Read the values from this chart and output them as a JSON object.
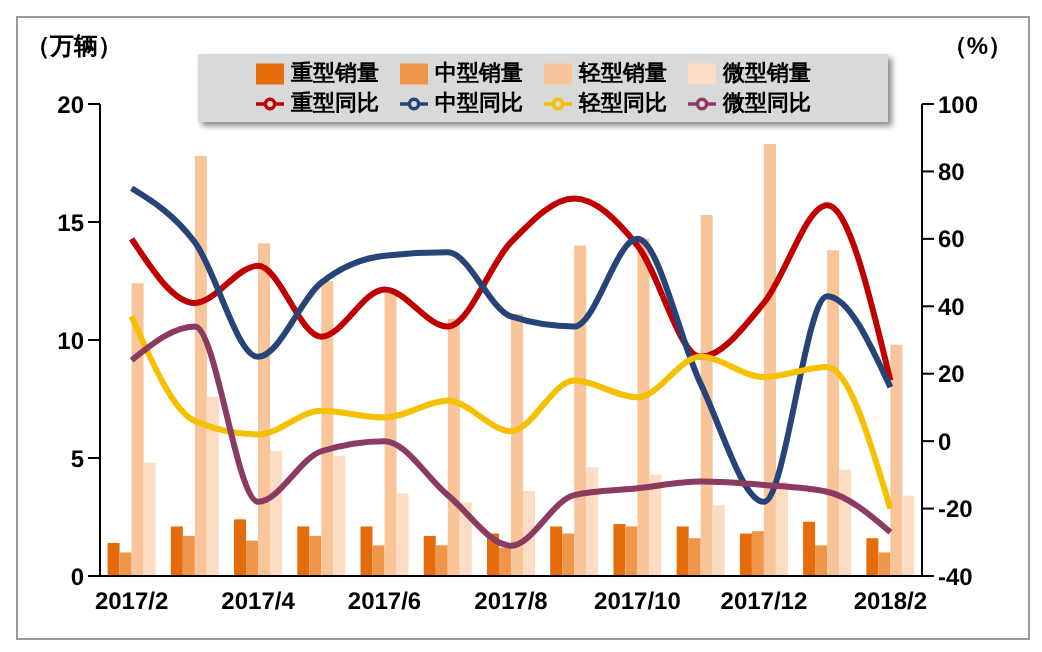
{
  "chart_data": {
    "type": "bar",
    "ylabel": "（万辆）",
    "y2label": "（%）",
    "categories": [
      "2017/2",
      null,
      "2017/4",
      null,
      "2017/6",
      null,
      "2017/8",
      null,
      "2017/10",
      null,
      "2017/12",
      null,
      "2018/2"
    ],
    "series": [
      {
        "name": "重型销量",
        "color": "#e46c0a",
        "values": [
          1.4,
          2.1,
          2.4,
          2.1,
          2.1,
          1.7,
          1.8,
          2.1,
          2.2,
          2.1,
          1.8,
          2.3,
          1.6
        ]
      },
      {
        "name": "中型销量",
        "color": "#f0964a",
        "values": [
          1.0,
          1.7,
          1.5,
          1.7,
          1.3,
          1.3,
          1.2,
          1.8,
          2.1,
          1.6,
          1.9,
          1.3,
          1.0
        ]
      },
      {
        "name": "轻型销量",
        "color": "#f8c49a",
        "values": [
          12.4,
          17.8,
          14.1,
          12.5,
          12.0,
          10.9,
          11.1,
          14.0,
          14.3,
          15.3,
          18.3,
          13.8,
          9.8
        ]
      },
      {
        "name": "微型销量",
        "color": "#fcdcc2",
        "values": [
          4.8,
          7.6,
          5.3,
          5.1,
          3.5,
          3.1,
          3.6,
          4.6,
          4.3,
          3.0,
          4.0,
          4.5,
          3.4
        ]
      },
      {
        "name": "重型同比",
        "type": "line",
        "axis": "y2",
        "color": "#c00000",
        "values": [
          60,
          41,
          52,
          31,
          45,
          34,
          59,
          72,
          58,
          25,
          41,
          70,
          18
        ]
      },
      {
        "name": "中型同比",
        "type": "line",
        "axis": "y2",
        "color": "#264478",
        "values": [
          75,
          59,
          25,
          47,
          55,
          56,
          37,
          34,
          60,
          17,
          -18,
          43,
          16
        ]
      },
      {
        "name": "轻型同比",
        "type": "line",
        "axis": "y2",
        "color": "#f5c000",
        "values": [
          37,
          6,
          2,
          9,
          7,
          12,
          3,
          18,
          13,
          25,
          19,
          22,
          -20
        ]
      },
      {
        "name": "微型同比",
        "type": "line",
        "axis": "y2",
        "color": "#8b3a62",
        "values": [
          24,
          34,
          -18,
          -3,
          0,
          -16,
          -31,
          -16,
          -14,
          -12,
          -13,
          -15,
          -27
        ]
      }
    ],
    "ylim": [
      0,
      20
    ],
    "yticks": [
      0,
      5,
      10,
      15,
      20
    ],
    "y2lim": [
      -40,
      100
    ],
    "y2ticks": [
      -40,
      -20,
      0,
      20,
      40,
      60,
      80,
      100
    ],
    "legend": "top",
    "grid": false
  }
}
